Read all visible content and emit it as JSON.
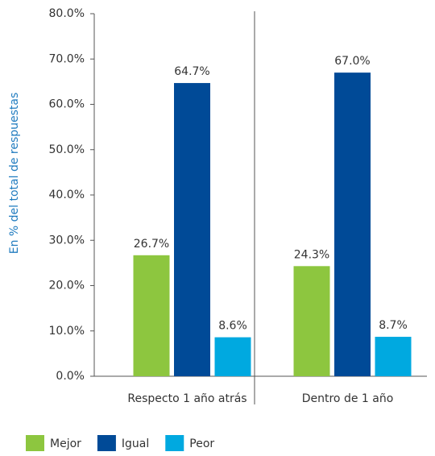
{
  "chart_data": {
    "type": "bar",
    "y_label": "En % del total de respuestas",
    "categories": [
      "Respecto 1 año atrás",
      "Dentro de 1 año"
    ],
    "series": [
      {
        "name": "Mejor",
        "color": "#8dc63f",
        "values": [
          26.7,
          24.3
        ],
        "value_labels": [
          "26.7%",
          "24.3%"
        ]
      },
      {
        "name": "Igual",
        "color": "#004a97",
        "values": [
          64.7,
          67.0
        ],
        "value_labels": [
          "64.7%",
          "67.0%"
        ]
      },
      {
        "name": "Peor",
        "color": "#00a9e0",
        "values": [
          8.6,
          8.7
        ],
        "value_labels": [
          "8.6%",
          "8.7%"
        ]
      }
    ],
    "ylim": [
      0,
      80
    ],
    "yticks": [
      {
        "value": 0,
        "label": "0.0%"
      },
      {
        "value": 10,
        "label": "10.0%"
      },
      {
        "value": 20,
        "label": "20.0%"
      },
      {
        "value": 30,
        "label": "30.0%"
      },
      {
        "value": 40,
        "label": "40.0%"
      },
      {
        "value": 50,
        "label": "50.0%"
      },
      {
        "value": 60,
        "label": "60.0%"
      },
      {
        "value": 70,
        "label": "70.0%"
      },
      {
        "value": 80,
        "label": "80.0%"
      }
    ],
    "legend": "bottom-left"
  }
}
